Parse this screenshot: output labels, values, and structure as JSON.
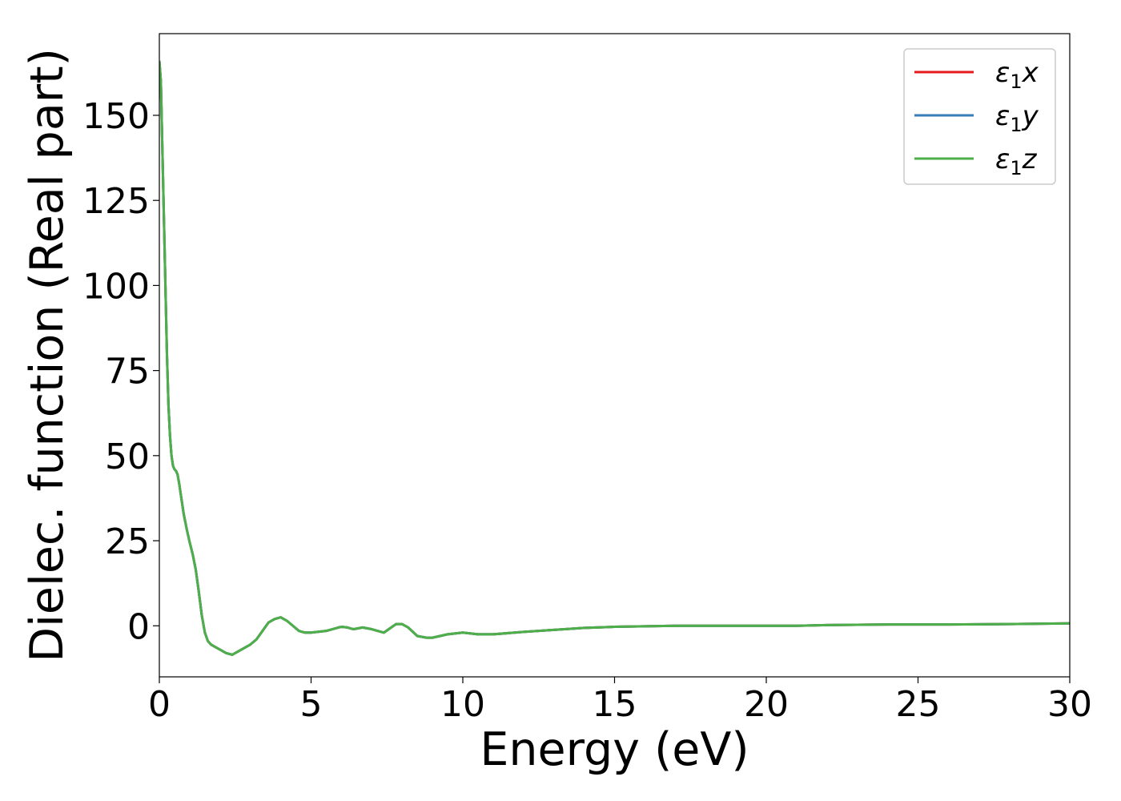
{
  "chart_data": {
    "type": "line",
    "title": "",
    "xlabel": "Energy (eV)",
    "ylabel": "Dielec. function (Real part)",
    "xlim": [
      0,
      30
    ],
    "ylim": [
      -15,
      174
    ],
    "xticks": [
      "0",
      "5",
      "10",
      "15",
      "20",
      "25",
      "30"
    ],
    "yticks": [
      "0",
      "25",
      "50",
      "75",
      "100",
      "125",
      "150"
    ],
    "grid": false,
    "legend_position": "top-right",
    "series": [
      {
        "name": "ε1x",
        "color": "#e41a1c",
        "x": [
          0.0,
          0.05,
          0.1,
          0.15,
          0.2,
          0.25,
          0.3,
          0.35,
          0.4,
          0.45,
          0.5,
          0.55,
          0.6,
          0.65,
          0.7,
          0.75,
          0.8,
          0.9,
          1.0,
          1.1,
          1.2,
          1.3,
          1.4,
          1.5,
          1.6,
          1.7,
          1.8,
          2.0,
          2.2,
          2.4,
          2.6,
          2.8,
          3.0,
          3.2,
          3.4,
          3.6,
          3.8,
          4.0,
          4.2,
          4.4,
          4.6,
          4.8,
          5.0,
          5.5,
          5.9,
          6.0,
          6.2,
          6.4,
          6.7,
          7.0,
          7.4,
          7.8,
          8.0,
          8.2,
          8.5,
          8.8,
          9.0,
          9.5,
          10.0,
          10.5,
          11.0,
          12.0,
          13.0,
          14.0,
          15.0,
          17.0,
          19.0,
          21.0,
          22.0,
          24.0,
          26.0,
          28.0,
          30.0
        ],
        "values": [
          166.0,
          160.0,
          140.0,
          120.0,
          100.0,
          80.0,
          65.0,
          56.0,
          50.0,
          47.0,
          46.0,
          45.5,
          44.5,
          42.0,
          39.0,
          36.0,
          33.0,
          28.5,
          24.5,
          21.0,
          16.5,
          10.0,
          3.0,
          -2.0,
          -4.5,
          -5.5,
          -6.0,
          -7.0,
          -8.0,
          -8.5,
          -7.5,
          -6.5,
          -5.5,
          -4.0,
          -1.5,
          1.0,
          2.0,
          2.5,
          1.5,
          0.0,
          -1.5,
          -2.0,
          -2.0,
          -1.5,
          -0.5,
          -0.3,
          -0.5,
          -1.0,
          -0.5,
          -1.0,
          -2.0,
          0.5,
          0.5,
          -0.5,
          -3.0,
          -3.5,
          -3.5,
          -2.5,
          -2.0,
          -2.5,
          -2.5,
          -1.8,
          -1.2,
          -0.6,
          -0.3,
          0.0,
          0.0,
          0.0,
          0.2,
          0.4,
          0.4,
          0.5,
          0.7
        ]
      },
      {
        "name": "ε1y",
        "color": "#377eb8",
        "x": [
          0.0,
          0.05,
          0.1,
          0.15,
          0.2,
          0.25,
          0.3,
          0.35,
          0.4,
          0.45,
          0.5,
          0.55,
          0.6,
          0.65,
          0.7,
          0.75,
          0.8,
          0.9,
          1.0,
          1.1,
          1.2,
          1.3,
          1.4,
          1.5,
          1.6,
          1.7,
          1.8,
          2.0,
          2.2,
          2.4,
          2.6,
          2.8,
          3.0,
          3.2,
          3.4,
          3.6,
          3.8,
          4.0,
          4.2,
          4.4,
          4.6,
          4.8,
          5.0,
          5.5,
          5.9,
          6.0,
          6.2,
          6.4,
          6.7,
          7.0,
          7.4,
          7.8,
          8.0,
          8.2,
          8.5,
          8.8,
          9.0,
          9.5,
          10.0,
          10.5,
          11.0,
          12.0,
          13.0,
          14.0,
          15.0,
          17.0,
          19.0,
          21.0,
          22.0,
          24.0,
          26.0,
          28.0,
          30.0
        ],
        "values": [
          166.0,
          160.0,
          140.0,
          120.0,
          100.0,
          80.0,
          65.0,
          56.0,
          50.0,
          47.0,
          46.0,
          45.5,
          44.5,
          42.0,
          39.0,
          36.0,
          33.0,
          28.5,
          24.5,
          21.0,
          16.5,
          10.0,
          3.0,
          -2.0,
          -4.5,
          -5.5,
          -6.0,
          -7.0,
          -8.0,
          -8.5,
          -7.5,
          -6.5,
          -5.5,
          -4.0,
          -1.5,
          1.0,
          2.0,
          2.5,
          1.5,
          0.0,
          -1.5,
          -2.0,
          -2.0,
          -1.5,
          -0.5,
          -0.3,
          -0.5,
          -1.0,
          -0.5,
          -1.0,
          -2.0,
          0.5,
          0.5,
          -0.5,
          -3.0,
          -3.5,
          -3.5,
          -2.5,
          -2.0,
          -2.5,
          -2.5,
          -1.8,
          -1.2,
          -0.6,
          -0.3,
          0.0,
          0.0,
          0.0,
          0.2,
          0.4,
          0.4,
          0.5,
          0.7
        ]
      },
      {
        "name": "ε1z",
        "color": "#4daf4a",
        "x": [
          0.0,
          0.05,
          0.1,
          0.15,
          0.2,
          0.25,
          0.3,
          0.35,
          0.4,
          0.45,
          0.5,
          0.55,
          0.6,
          0.65,
          0.7,
          0.75,
          0.8,
          0.9,
          1.0,
          1.1,
          1.2,
          1.3,
          1.4,
          1.5,
          1.6,
          1.7,
          1.8,
          2.0,
          2.2,
          2.4,
          2.6,
          2.8,
          3.0,
          3.2,
          3.4,
          3.6,
          3.8,
          4.0,
          4.2,
          4.4,
          4.6,
          4.8,
          5.0,
          5.5,
          5.9,
          6.0,
          6.2,
          6.4,
          6.7,
          7.0,
          7.4,
          7.8,
          8.0,
          8.2,
          8.5,
          8.8,
          9.0,
          9.5,
          10.0,
          10.5,
          11.0,
          12.0,
          13.0,
          14.0,
          15.0,
          17.0,
          19.0,
          21.0,
          22.0,
          24.0,
          26.0,
          28.0,
          30.0
        ],
        "values": [
          166.0,
          160.0,
          140.0,
          120.0,
          100.0,
          80.0,
          65.0,
          56.0,
          50.0,
          47.0,
          46.0,
          45.5,
          44.5,
          42.0,
          39.0,
          36.0,
          33.0,
          28.5,
          24.5,
          21.0,
          16.5,
          10.0,
          3.0,
          -2.0,
          -4.5,
          -5.5,
          -6.0,
          -7.0,
          -8.0,
          -8.5,
          -7.5,
          -6.5,
          -5.5,
          -4.0,
          -1.5,
          1.0,
          2.0,
          2.5,
          1.5,
          0.0,
          -1.5,
          -2.0,
          -2.0,
          -1.5,
          -0.5,
          -0.3,
          -0.5,
          -1.0,
          -0.5,
          -1.0,
          -2.0,
          0.5,
          0.5,
          -0.5,
          -3.0,
          -3.5,
          -3.5,
          -2.5,
          -2.0,
          -2.5,
          -2.5,
          -1.8,
          -1.2,
          -0.6,
          -0.3,
          0.0,
          0.0,
          0.0,
          0.2,
          0.4,
          0.4,
          0.5,
          0.7
        ]
      }
    ]
  }
}
